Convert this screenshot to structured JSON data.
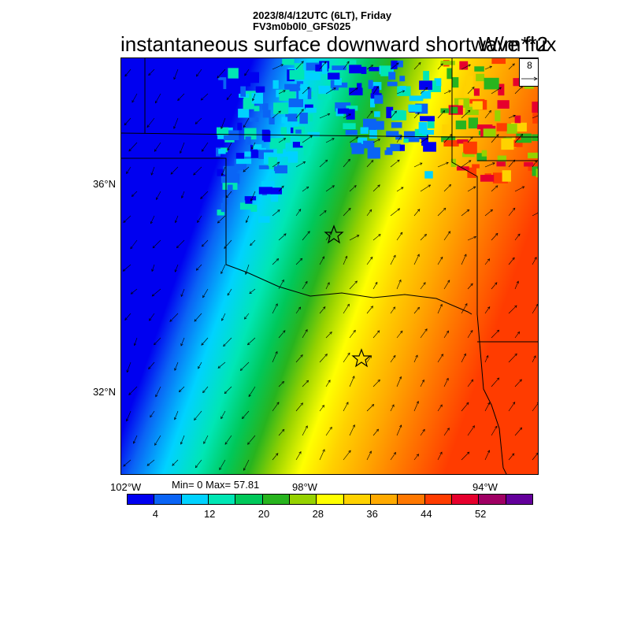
{
  "header": {
    "line1": "2023/8/4/12UTC (6LT), Friday",
    "line2": "FV3m0b0l0_GFS025",
    "title": "instantaneous surface downward shortwave flux",
    "units": "W/m**2"
  },
  "map": {
    "lat_labels": [
      "36°N",
      "32°N"
    ],
    "lon_labels": [
      "102°W",
      "98°W",
      "94°W"
    ],
    "minmax_text": "Min= 0 Max= 57.81",
    "vector_legend_label": "8"
  },
  "colorbar": {
    "colors": [
      "#0000f0",
      "#0a64f5",
      "#00d2ff",
      "#00e6b4",
      "#00c85a",
      "#28b41e",
      "#96d200",
      "#ffff00",
      "#ffd200",
      "#ffaa00",
      "#ff7800",
      "#ff3c00",
      "#e6002d",
      "#a00064",
      "#64009b"
    ],
    "tick_labels": [
      "4",
      "12",
      "20",
      "28",
      "36",
      "44",
      "52"
    ]
  }
}
